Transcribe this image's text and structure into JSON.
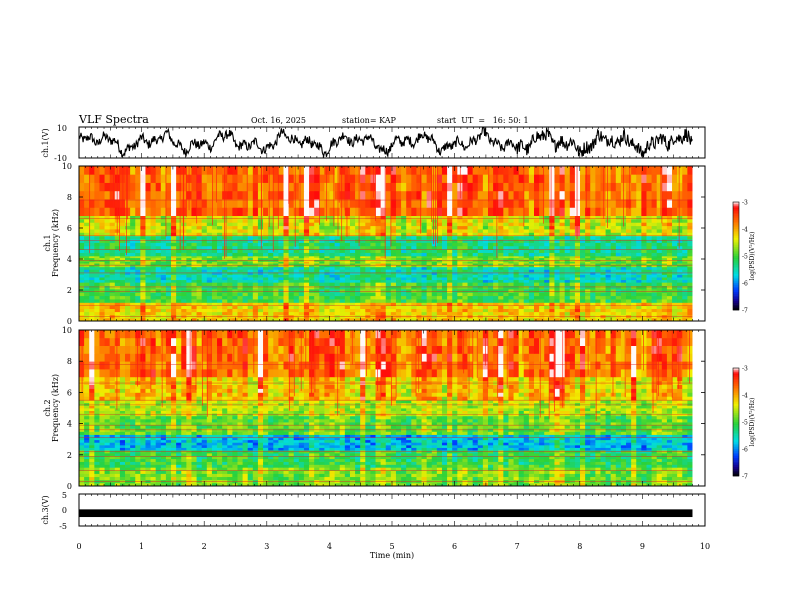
{
  "header": {
    "title": "VLF Spectra",
    "date": "Oct. 16, 2025",
    "station": "station= KAP",
    "start": "start  UT  =   16: 50: 1"
  },
  "chart_data": [
    {
      "type": "line",
      "name": "ch1-waveform",
      "ylabel": "ch.1(V)",
      "ylim": [
        -10,
        10
      ],
      "y_ticks": [
        "10",
        "-10"
      ],
      "x_range": [
        0,
        10
      ],
      "data_end_min": 9.8,
      "description_values": {
        "amplitude_range_V": [
          -8,
          9
        ]
      }
    },
    {
      "type": "heatmap",
      "name": "ch1-spectrogram",
      "ylabel": "ch.1\nFrequency (kHz)",
      "ylim": [
        0,
        10
      ],
      "y_ticks": [
        "0",
        "2",
        "4",
        "6",
        "8",
        "10"
      ],
      "x_range": [
        0,
        10
      ],
      "data_end_min": 9.8,
      "colorbar": {
        "label": "log(PSD)(V²/Hz)",
        "range": [
          -7,
          -3
        ],
        "ticks": [
          "-3",
          "-4",
          "-5",
          "-6",
          "-7"
        ]
      },
      "bands_kHz": [
        {
          "from": 0,
          "to": 1.2,
          "level": -4.2
        },
        {
          "from": 1.2,
          "to": 2.5,
          "level": -5.0
        },
        {
          "from": 2.5,
          "to": 3.5,
          "level": -5.5
        },
        {
          "from": 3.5,
          "to": 4.2,
          "level": -4.8
        },
        {
          "from": 4.2,
          "to": 5.5,
          "level": -5.3
        },
        {
          "from": 5.5,
          "to": 6.8,
          "level": -4.4
        },
        {
          "from": 6.8,
          "to": 10,
          "level": -3.6
        }
      ]
    },
    {
      "type": "heatmap",
      "name": "ch2-spectrogram",
      "ylabel": "ch.2\nFrequency (kHz)",
      "ylim": [
        0,
        10
      ],
      "y_ticks": [
        "0",
        "2",
        "4",
        "6",
        "8",
        "10"
      ],
      "x_range": [
        0,
        10
      ],
      "data_end_min": 9.8,
      "colorbar": {
        "label": "log(PSD)(V²/Hz)",
        "range": [
          -7,
          -3
        ],
        "ticks": [
          "-3",
          "-4",
          "-5",
          "-6",
          "-7"
        ]
      },
      "bands_kHz": [
        {
          "from": 0,
          "to": 1.2,
          "level": -4.8
        },
        {
          "from": 1.2,
          "to": 2.3,
          "level": -5.1
        },
        {
          "from": 2.3,
          "to": 3.3,
          "level": -5.8
        },
        {
          "from": 3.3,
          "to": 4.5,
          "level": -4.9
        },
        {
          "from": 4.5,
          "to": 5.5,
          "level": -4.6
        },
        {
          "from": 5.5,
          "to": 7.0,
          "level": -4.2
        },
        {
          "from": 7.0,
          "to": 10,
          "level": -3.7
        }
      ]
    },
    {
      "type": "line",
      "name": "ch3-waveform",
      "ylabel": "ch.3(V)",
      "ylim": [
        -5,
        5
      ],
      "y_ticks": [
        "5",
        "0",
        "-5"
      ],
      "x_range": [
        0,
        10
      ],
      "data_end_min": 9.8,
      "description_values": {
        "level_V": -1,
        "spread_V": 0.4
      }
    }
  ],
  "x_axis": {
    "label": "Time (min)",
    "ticks": [
      "0",
      "1",
      "2",
      "3",
      "4",
      "5",
      "6",
      "7",
      "8",
      "9",
      "10"
    ],
    "range": [
      0,
      10
    ]
  }
}
